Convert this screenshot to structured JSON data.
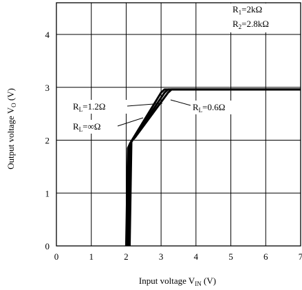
{
  "chart_data": {
    "type": "line",
    "xlabel": {
      "main": "Input voltage V",
      "sub": "IN",
      "unit": " (V)"
    },
    "ylabel": {
      "main": "Output voltage V",
      "sub": "O",
      "unit": " (V)"
    },
    "xlim": [
      0,
      7
    ],
    "ylim": [
      0,
      4.6
    ],
    "xticks": [
      "0",
      "1",
      "2",
      "3",
      "4",
      "5",
      "6",
      "7"
    ],
    "yticks": [
      "0",
      "1",
      "2",
      "3",
      "4"
    ],
    "grid": true,
    "conditions": [
      {
        "main": "R",
        "sub": "1",
        "rest": "=2kΩ"
      },
      {
        "main": "R",
        "sub": "2",
        "rest": "=2.8kΩ"
      }
    ],
    "series": [
      {
        "label": {
          "main": "R",
          "sub": "L",
          "rest": "=∞Ω"
        },
        "points": [
          [
            2.0,
            0.0
          ],
          [
            2.05,
            1.85
          ],
          [
            2.12,
            1.95
          ],
          [
            3.0,
            2.9
          ],
          [
            3.1,
            2.96
          ],
          [
            7.0,
            2.96
          ]
        ]
      },
      {
        "label": {
          "main": "R",
          "sub": "L",
          "rest": "=1.2Ω"
        },
        "points": [
          [
            2.05,
            0.0
          ],
          [
            2.1,
            1.92
          ],
          [
            2.18,
            2.0
          ],
          [
            3.1,
            2.9
          ],
          [
            3.2,
            2.96
          ],
          [
            7.0,
            2.96
          ]
        ]
      },
      {
        "label": {
          "main": "R",
          "sub": "L",
          "rest": "=0.6Ω"
        },
        "points": [
          [
            2.1,
            0.0
          ],
          [
            2.15,
            1.98
          ],
          [
            2.25,
            2.05
          ],
          [
            3.2,
            2.9
          ],
          [
            3.3,
            2.96
          ],
          [
            7.0,
            2.96
          ]
        ]
      }
    ]
  }
}
